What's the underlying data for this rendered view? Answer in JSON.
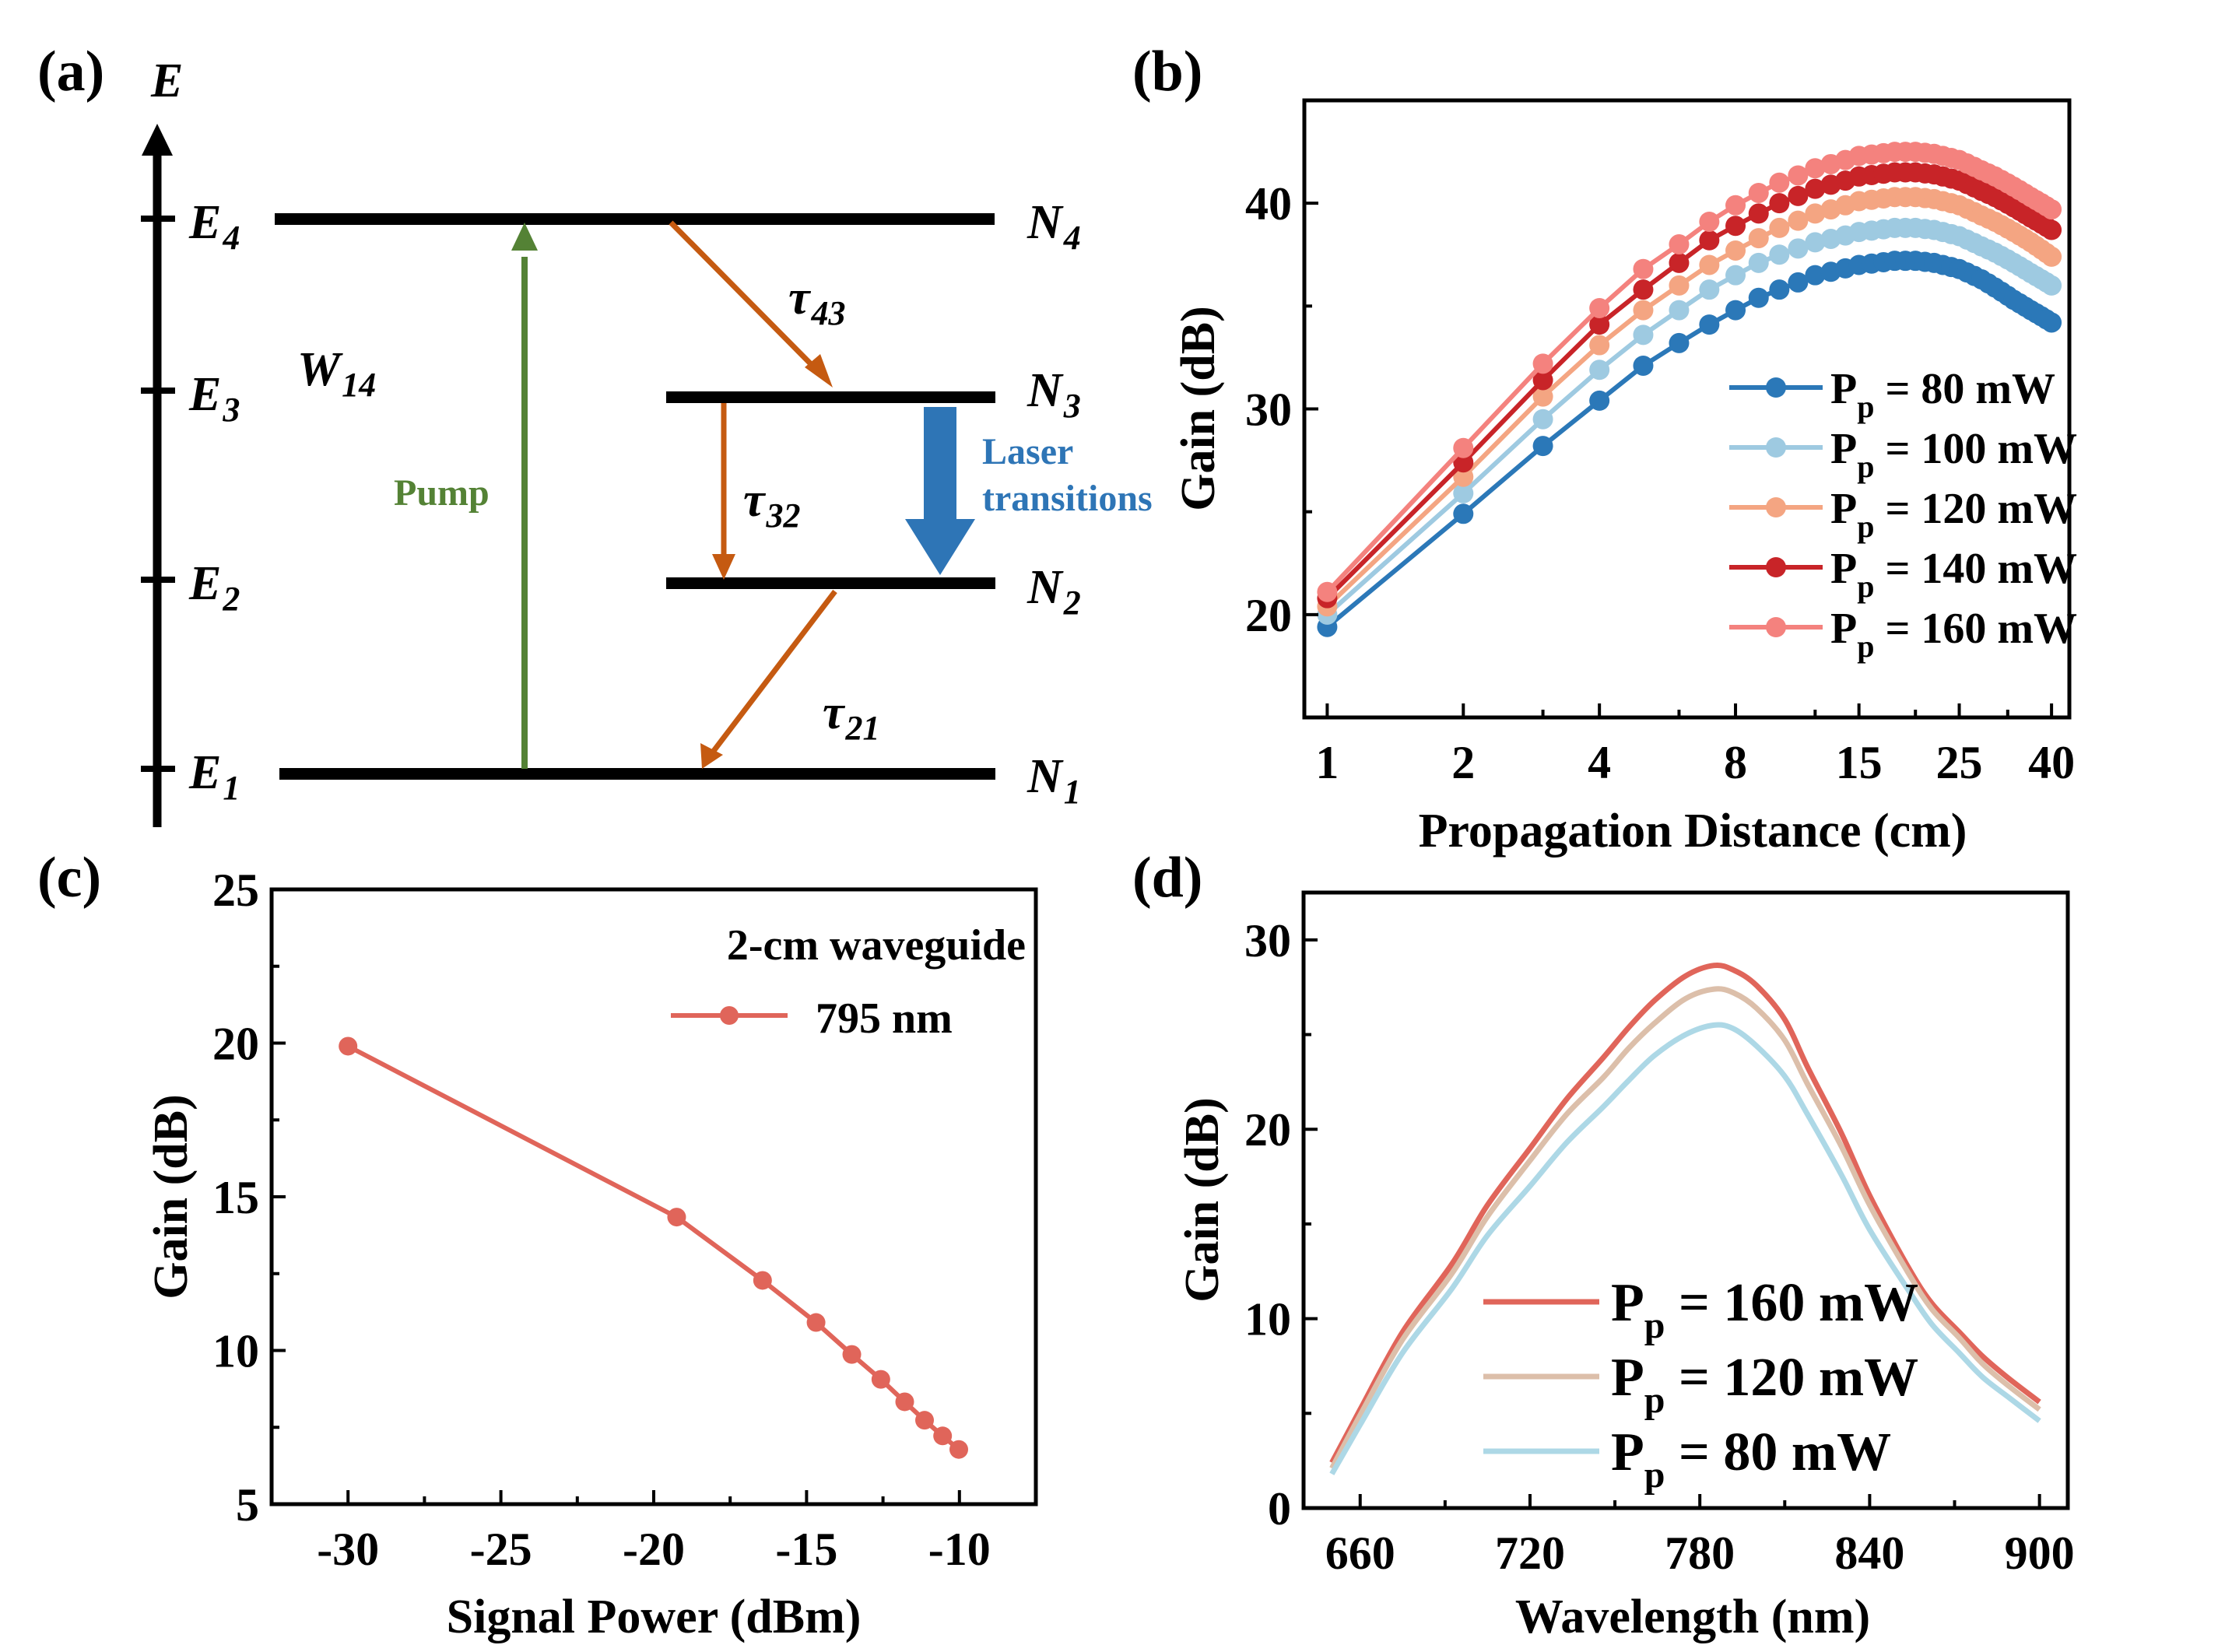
{
  "figure": {
    "panel_labels": [
      "(a)",
      "(b)",
      "(c)",
      "(d)"
    ]
  },
  "diagram": {
    "axis_label": "E",
    "levels": [
      {
        "name": "E",
        "sub": "4",
        "pop": "N",
        "pop_sub": "4"
      },
      {
        "name": "E",
        "sub": "3",
        "pop": "N",
        "pop_sub": "3"
      },
      {
        "name": "E",
        "sub": "2",
        "pop": "N",
        "pop_sub": "2"
      },
      {
        "name": "E",
        "sub": "1",
        "pop": "N",
        "pop_sub": "1"
      }
    ],
    "pump_rate": {
      "name": "W",
      "sub": "14"
    },
    "pump_label": "Pump",
    "laser_label_line1": "Laser",
    "laser_label_line2": "transitions",
    "tau43": {
      "name": "τ",
      "sub": "43"
    },
    "tau32": {
      "name": "τ",
      "sub": "32"
    },
    "tau21": {
      "name": "τ",
      "sub": "21"
    },
    "colors": {
      "pump": "#548235",
      "decay": "#c55a11",
      "laser": "#2e75b6",
      "level": "#000000"
    }
  },
  "chart_data": [
    {
      "panel": "(b)",
      "type": "line",
      "xscale": "log2",
      "xlabel": "Propagation Distance (cm)",
      "ylabel": "Gain (dB)",
      "xlim": [
        0.89,
        43.8
      ],
      "ylim": [
        15,
        45
      ],
      "xticks": [
        1,
        2,
        4,
        8,
        15,
        25,
        40
      ],
      "xminor": [
        3,
        6,
        12,
        20,
        32
      ],
      "yticks": [
        20,
        30,
        40
      ],
      "yminor": [
        25,
        35
      ],
      "grid": false,
      "legend_position": "lower-right",
      "markers": true,
      "series": [
        {
          "name": "P_p = 80 mW",
          "label_main": "P",
          "label_sub": "p",
          "label_rest": " = 80 mW",
          "color": "#2b78b8",
          "x": [
            1,
            2,
            3,
            4,
            5,
            6,
            7,
            8,
            9,
            10,
            12,
            15,
            18,
            20,
            22,
            25,
            28,
            30,
            33,
            36,
            40
          ],
          "y": [
            19.4,
            24.9,
            28.2,
            30.4,
            32.1,
            33.2,
            34.1,
            34.8,
            35.4,
            35.8,
            36.5,
            37.0,
            37.2,
            37.2,
            37.1,
            36.8,
            36.3,
            35.9,
            35.3,
            34.8,
            34.2
          ]
        },
        {
          "name": "P_p = 100 mW",
          "label_main": "P",
          "label_sub": "p",
          "label_rest": " = 100 mW",
          "color": "#9ecae1",
          "x": [
            1,
            2,
            3,
            4,
            5,
            6,
            7,
            8,
            9,
            10,
            12,
            15,
            18,
            20,
            22,
            25,
            28,
            30,
            33,
            36,
            40
          ],
          "y": [
            20.0,
            25.9,
            29.5,
            31.9,
            33.6,
            34.8,
            35.8,
            36.5,
            37.1,
            37.5,
            38.1,
            38.6,
            38.8,
            38.8,
            38.7,
            38.4,
            37.9,
            37.6,
            37.1,
            36.6,
            36.0
          ]
        },
        {
          "name": "P_p = 120 mW",
          "label_main": "P",
          "label_sub": "p",
          "label_rest": " = 120 mW",
          "color": "#f4a582",
          "x": [
            1,
            2,
            3,
            4,
            5,
            6,
            7,
            8,
            9,
            10,
            12,
            15,
            18,
            20,
            22,
            25,
            28,
            30,
            33,
            36,
            40
          ],
          "y": [
            20.4,
            26.7,
            30.6,
            33.1,
            34.8,
            36.0,
            37.0,
            37.7,
            38.3,
            38.8,
            39.5,
            40.1,
            40.3,
            40.3,
            40.2,
            39.9,
            39.4,
            39.1,
            38.6,
            38.1,
            37.4
          ]
        },
        {
          "name": "P_p = 140 mW",
          "label_main": "P",
          "label_sub": "p",
          "label_rest": " = 140 mW",
          "color": "#c82428",
          "x": [
            1,
            2,
            3,
            4,
            5,
            6,
            7,
            8,
            9,
            10,
            12,
            15,
            18,
            20,
            22,
            25,
            28,
            30,
            33,
            36,
            40
          ],
          "y": [
            20.8,
            27.4,
            31.4,
            34.1,
            35.8,
            37.1,
            38.2,
            38.9,
            39.5,
            40.0,
            40.7,
            41.3,
            41.5,
            41.5,
            41.4,
            41.1,
            40.6,
            40.3,
            39.8,
            39.3,
            38.7
          ]
        },
        {
          "name": "P_p = 160 mW",
          "label_main": "P",
          "label_sub": "p",
          "label_rest": " = 160 mW",
          "color": "#f4827e",
          "x": [
            1,
            2,
            3,
            4,
            5,
            6,
            7,
            8,
            9,
            10,
            12,
            15,
            18,
            20,
            22,
            25,
            28,
            30,
            33,
            36,
            40
          ],
          "y": [
            21.1,
            28.1,
            32.2,
            34.9,
            36.8,
            38.0,
            39.1,
            39.9,
            40.5,
            41.0,
            41.7,
            42.3,
            42.5,
            42.5,
            42.4,
            42.1,
            41.6,
            41.3,
            40.8,
            40.3,
            39.7
          ]
        }
      ]
    },
    {
      "panel": "(c)",
      "type": "line",
      "xlabel": "Signal Power (dBm)",
      "ylabel": "Gain (dB)",
      "xlim": [
        -32.5,
        -7.5
      ],
      "ylim": [
        5,
        25
      ],
      "xticks": [
        -30,
        -25,
        -20,
        -15,
        -10
      ],
      "xminor": [
        -27.5,
        -22.5,
        -17.5,
        -12.5
      ],
      "yticks": [
        5,
        10,
        15,
        20,
        25
      ],
      "yminor": [
        7.5,
        12.5,
        17.5,
        22.5
      ],
      "grid": false,
      "legend_title": "2-cm waveguide",
      "legend_position": "top-right",
      "markers": true,
      "series": [
        {
          "name": "795 nm",
          "color": "#e0655a",
          "x": [
            -30,
            -19.25,
            -16.44,
            -14.69,
            -13.52,
            -12.57,
            -11.79,
            -11.14,
            -10.55,
            -10.02
          ],
          "y": [
            19.9,
            14.34,
            12.28,
            10.91,
            9.87,
            9.06,
            8.33,
            7.73,
            7.22,
            6.78
          ]
        }
      ]
    },
    {
      "panel": "(d)",
      "type": "line",
      "xlabel": "Wavelength (nm)",
      "ylabel": "Gain (dB)",
      "xlim": [
        640,
        910
      ],
      "ylim": [
        0,
        32.5
      ],
      "xticks": [
        660,
        720,
        780,
        840,
        900
      ],
      "xminor": [
        690,
        750,
        810,
        870
      ],
      "yticks": [
        0,
        10,
        20,
        30
      ],
      "yminor": [
        5,
        15,
        25
      ],
      "grid": false,
      "legend_position": "lower-center",
      "markers": false,
      "series": [
        {
          "name": "P_p = 160 mW",
          "label_main": "P",
          "label_sub": "p",
          "label_rest": " = 160 mW",
          "color": "#e0655a",
          "x": [
            650,
            660,
            675,
            692.5,
            705,
            720,
            733,
            746,
            755,
            764,
            775,
            785,
            792,
            800,
            810,
            818,
            830,
            840,
            853.7,
            862,
            871.6,
            880,
            889.5,
            900
          ],
          "y": [
            2.4,
            5.2,
            9.3,
            12.9,
            16.0,
            19.0,
            21.6,
            23.8,
            25.4,
            26.8,
            28.1,
            28.65,
            28.4,
            27.6,
            25.8,
            23.3,
            19.8,
            16.5,
            12.7,
            10.8,
            9.3,
            8.0,
            6.8,
            5.6
          ]
        },
        {
          "name": "P_p = 120 mW",
          "label_main": "P",
          "label_sub": "p",
          "label_rest": " = 120 mW",
          "color": "#dcbfaa",
          "x": [
            650,
            660,
            675,
            692.5,
            705,
            720,
            733,
            746,
            755,
            764,
            775,
            785,
            792,
            800,
            810,
            818,
            830,
            840,
            853.7,
            862,
            871.6,
            880,
            889.5,
            900
          ],
          "y": [
            2.1,
            4.9,
            8.9,
            12.4,
            15.4,
            18.35,
            20.8,
            22.75,
            24.3,
            25.6,
            26.9,
            27.4,
            27.2,
            26.4,
            24.7,
            22.4,
            19.1,
            16.0,
            12.4,
            10.5,
            9.0,
            7.6,
            6.4,
            5.2
          ]
        },
        {
          "name": "P_p = 80 mW",
          "label_main": "P",
          "label_sub": "p",
          "label_rest": " = 80 mW",
          "color": "#add8e6",
          "x": [
            650,
            660,
            675,
            692.5,
            705,
            720,
            733,
            746,
            755,
            764,
            775,
            785,
            792,
            800,
            810,
            818,
            830,
            840,
            853.7,
            862,
            871.6,
            880,
            889.5,
            900
          ],
          "y": [
            1.8,
            4.4,
            8.2,
            11.6,
            14.4,
            17.0,
            19.3,
            21.2,
            22.6,
            23.9,
            25.0,
            25.5,
            25.3,
            24.4,
            22.8,
            20.8,
            17.6,
            14.7,
            11.5,
            9.7,
            8.2,
            6.9,
            5.8,
            4.6
          ]
        }
      ]
    }
  ]
}
